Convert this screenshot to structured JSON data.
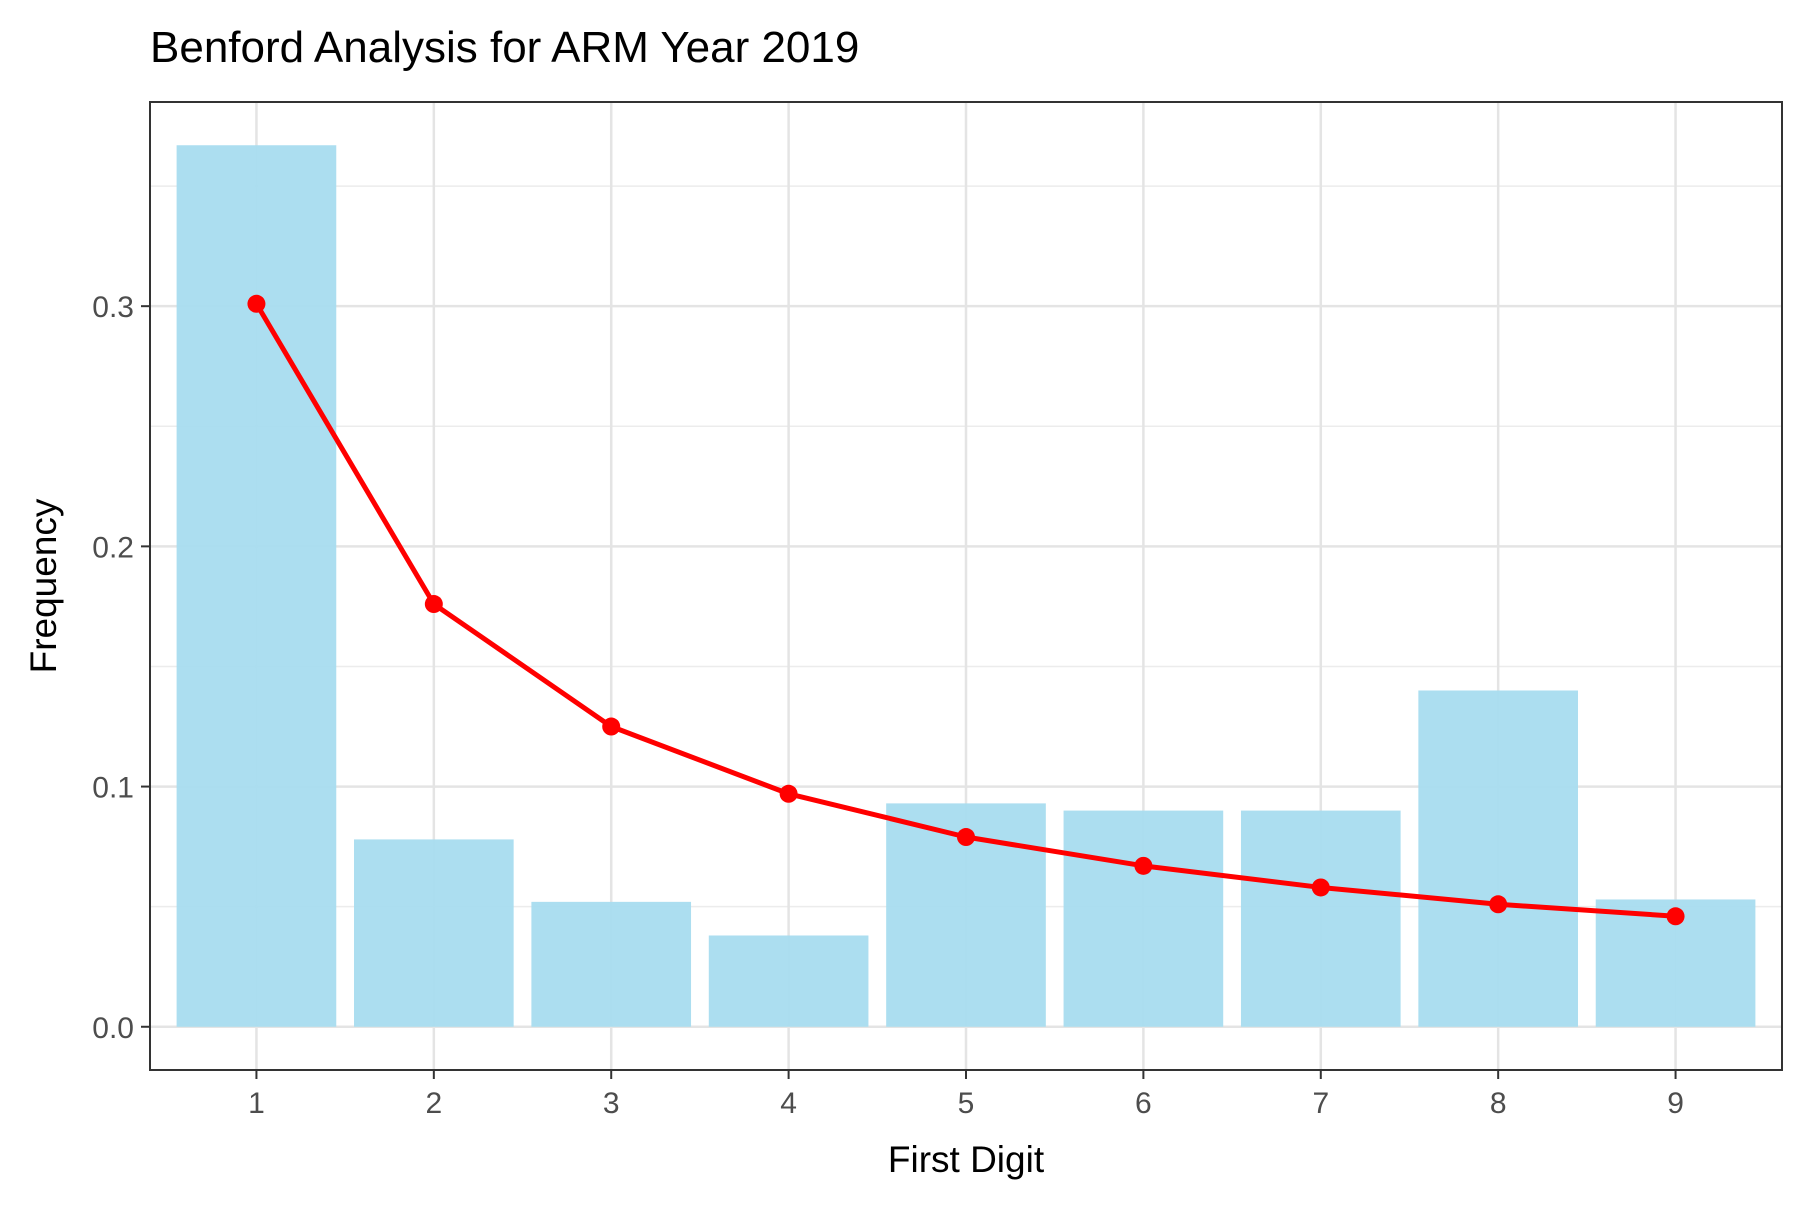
{
  "chart_data": {
    "type": "bar",
    "title": "Benford Analysis for ARM Year 2019",
    "xlabel": "First Digit",
    "ylabel": "Frequency",
    "categories": [
      "1",
      "2",
      "3",
      "4",
      "5",
      "6",
      "7",
      "8",
      "9"
    ],
    "x_ticks": [
      "1",
      "2",
      "3",
      "4",
      "5",
      "6",
      "7",
      "8",
      "9"
    ],
    "y_ticks": [
      "0.0",
      "0.1",
      "0.2",
      "0.3"
    ],
    "ylim": [
      -0.018,
      0.385
    ],
    "grid": true,
    "legend": "none",
    "series": [
      {
        "type": "bar",
        "values": [
          0.367,
          0.078,
          0.052,
          0.038,
          0.093,
          0.09,
          0.09,
          0.14,
          0.053
        ],
        "color": "#a8dcef"
      },
      {
        "type": "line",
        "values": [
          0.301,
          0.176,
          0.125,
          0.097,
          0.079,
          0.067,
          0.058,
          0.051,
          0.046
        ],
        "color": "#ff0000"
      }
    ]
  }
}
